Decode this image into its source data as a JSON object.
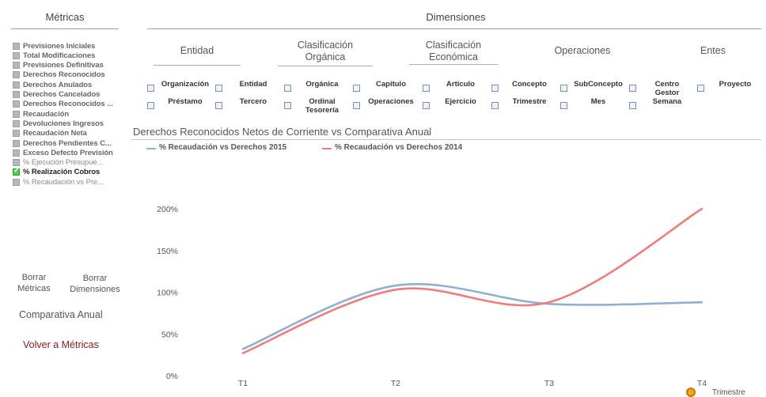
{
  "metrics_panel": {
    "title": "Métricas",
    "items": [
      {
        "label": "Previsiones Iniciales",
        "checked": false,
        "style": "normal"
      },
      {
        "label": "Total Modificaciones",
        "checked": false,
        "style": "normal"
      },
      {
        "label": "Previsiones Definitivas",
        "checked": false,
        "style": "normal"
      },
      {
        "label": "Derechos Reconocidos",
        "checked": false,
        "style": "normal"
      },
      {
        "label": "Derechos Anulados",
        "checked": false,
        "style": "normal"
      },
      {
        "label": "Derechos Cancelados",
        "checked": false,
        "style": "normal"
      },
      {
        "label": "Derechos Reconocidos ...",
        "checked": false,
        "style": "normal"
      },
      {
        "label": "Recaudación",
        "checked": false,
        "style": "normal"
      },
      {
        "label": "Devoluciones Ingresos",
        "checked": false,
        "style": "normal"
      },
      {
        "label": "Recaudación Neta",
        "checked": false,
        "style": "normal"
      },
      {
        "label": "Derechos Pendientes C...",
        "checked": false,
        "style": "normal"
      },
      {
        "label": "Exceso Defecto Previsión",
        "checked": false,
        "style": "normal"
      },
      {
        "label": "% Ejecución Presupue...",
        "checked": false,
        "style": "dim"
      },
      {
        "label": "% Realización Cobros",
        "checked": true,
        "style": "normal"
      },
      {
        "label": "% Recaudación vs Pre...",
        "checked": false,
        "style": "dim"
      }
    ],
    "clear_metrics": [
      "Borrar",
      "Métricas"
    ],
    "clear_dimensions": [
      "Borrar",
      "Dimensiones"
    ],
    "comparativa": "Comparativa Anual",
    "back": "Volver a Métricas"
  },
  "dimensions": {
    "title": "Dimensiones",
    "tabs": [
      [
        "Entidad"
      ],
      [
        "Clasificación",
        "Orgánica"
      ],
      [
        "Clasificación",
        "Económica"
      ],
      [
        "Operaciones"
      ],
      [
        "Entes"
      ]
    ],
    "checkbox_rows": [
      [
        [
          "Organización"
        ],
        [
          "Entidad"
        ],
        [
          "Orgánica"
        ],
        [
          "Capítulo"
        ],
        [
          "Artículo"
        ],
        [
          "Concepto"
        ],
        [
          "SubConcepto"
        ],
        [
          "Centro",
          "Gestor"
        ],
        [
          "Proyecto"
        ]
      ],
      [
        [
          "Préstamo"
        ],
        [
          "Tercero"
        ],
        [
          "Ordinal",
          "Tesorería"
        ],
        [
          "Operaciones"
        ],
        [
          "Ejercicio"
        ],
        [
          "Trimestre"
        ],
        [
          "Mes"
        ],
        [
          "Semana"
        ]
      ]
    ]
  },
  "chart_data": {
    "type": "line",
    "title": "Derechos Reconocidos Netos de Corriente vs Comparativa Anual",
    "categories": [
      "T1",
      "T2",
      "T3",
      "T4"
    ],
    "ylim": [
      0,
      2
    ],
    "yticks": [
      "0%",
      "50%",
      "100%",
      "150%",
      "200%"
    ],
    "series": [
      {
        "name": "% Recaudación vs Derechos 2015",
        "color": "#8fb0cf",
        "values": [
          0.32,
          1.08,
          0.86,
          0.88
        ]
      },
      {
        "name": "% Recaudación vs Derechos 2014",
        "color": "#f07b7b",
        "values": [
          0.27,
          1.03,
          0.88,
          2.0
        ]
      }
    ],
    "xlabel": "Trimestre",
    "grid": false,
    "legend": "top-left"
  }
}
